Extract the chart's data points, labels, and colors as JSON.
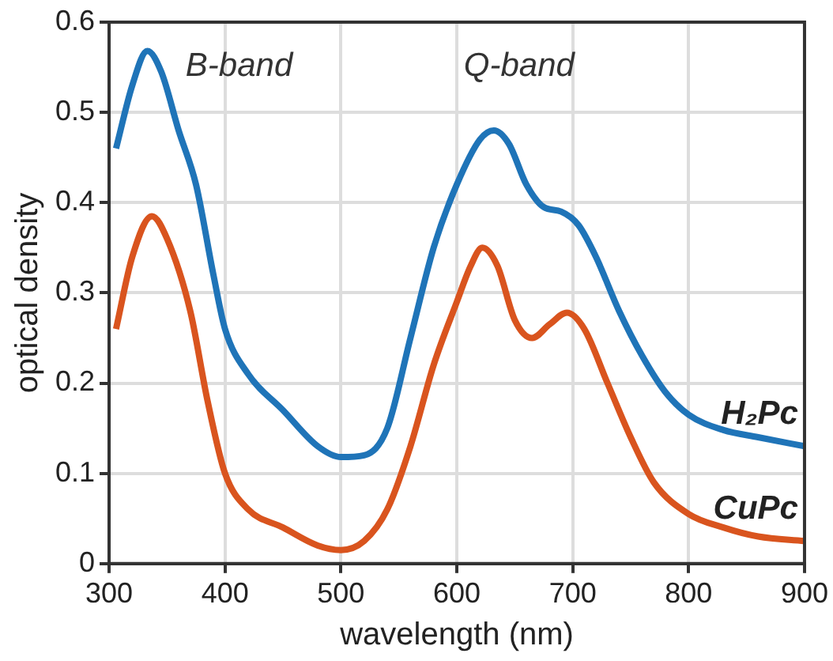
{
  "chart_data": {
    "type": "line",
    "xlabel": "wavelength (nm)",
    "ylabel": "optical density",
    "xlim": [
      300,
      900
    ],
    "xticks": [
      300,
      400,
      500,
      600,
      700,
      800,
      900
    ],
    "ylim": [
      0,
      0.6
    ],
    "yticks": [
      0,
      0.1,
      0.2,
      0.3,
      0.4,
      0.5,
      0.6
    ],
    "grid": true,
    "legend": false,
    "marker": "none",
    "line_style": "solid",
    "annotations": [
      "B-band",
      "Q-band"
    ],
    "series": [
      {
        "name": "H₂Pc",
        "color": "#1f74b8",
        "x": [
          306,
          320,
          333,
          345,
          360,
          375,
          390,
          400,
          420,
          450,
          480,
          500,
          520,
          540,
          560,
          580,
          600,
          620,
          632,
          645,
          660,
          675,
          690,
          705,
          720,
          740,
          760,
          780,
          800,
          830,
          860,
          900
        ],
        "values": [
          0.46,
          0.53,
          0.568,
          0.545,
          0.48,
          0.42,
          0.32,
          0.26,
          0.21,
          0.17,
          0.13,
          0.118,
          0.12,
          0.15,
          0.25,
          0.35,
          0.42,
          0.47,
          0.48,
          0.465,
          0.42,
          0.395,
          0.39,
          0.375,
          0.34,
          0.28,
          0.23,
          0.19,
          0.165,
          0.148,
          0.14,
          0.13
        ]
      },
      {
        "name": "CuPc",
        "color": "#d9541e",
        "x": [
          306,
          320,
          337,
          350,
          370,
          385,
          400,
          420,
          450,
          480,
          500,
          520,
          540,
          560,
          580,
          600,
          612,
          622,
          635,
          650,
          665,
          680,
          695,
          710,
          730,
          750,
          770,
          800,
          830,
          860,
          900
        ],
        "values": [
          0.26,
          0.34,
          0.385,
          0.36,
          0.28,
          0.18,
          0.1,
          0.06,
          0.04,
          0.02,
          0.015,
          0.025,
          0.06,
          0.13,
          0.22,
          0.29,
          0.33,
          0.35,
          0.33,
          0.27,
          0.25,
          0.265,
          0.278,
          0.26,
          0.2,
          0.14,
          0.09,
          0.055,
          0.04,
          0.03,
          0.025
        ]
      }
    ]
  }
}
